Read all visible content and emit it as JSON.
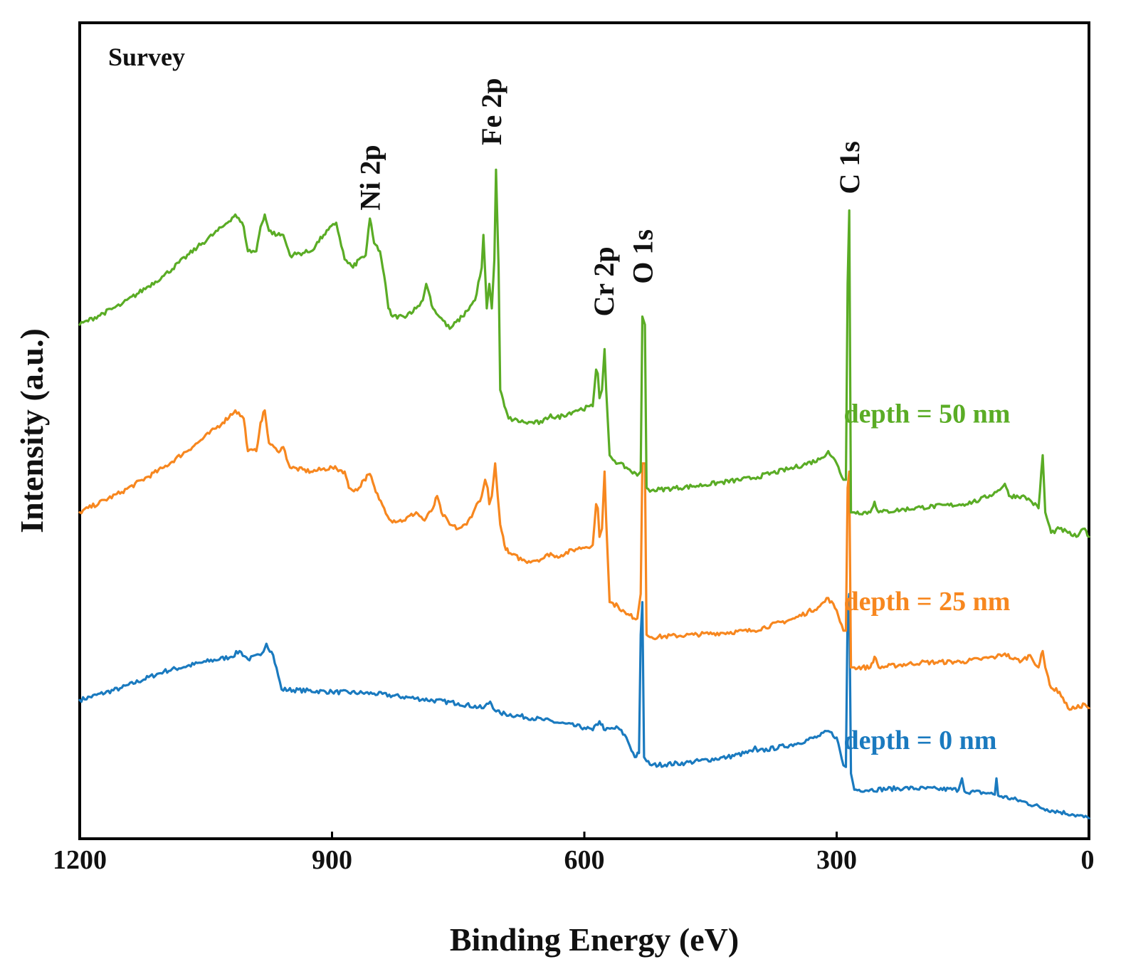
{
  "chart_data": {
    "type": "line",
    "title": "",
    "panel_label": "Survey",
    "xlabel": "Binding Energy (eV)",
    "ylabel": "Intensity (a.u.)",
    "xlim": [
      1200,
      0
    ],
    "ylim": [
      0,
      100
    ],
    "x_reversed": true,
    "xticks": [
      1200,
      900,
      600,
      300,
      0
    ],
    "yticks_shown": false,
    "grid": false,
    "peak_labels": [
      {
        "text": "Ni 2p",
        "x": 855,
        "y": 77
      },
      {
        "text": "Fe 2p",
        "x": 711,
        "y": 85
      },
      {
        "text": "Cr 2p",
        "x": 577,
        "y": 64
      },
      {
        "text": "O 1s",
        "x": 531,
        "y": 68
      },
      {
        "text": "C 1s",
        "x": 285,
        "y": 79
      }
    ],
    "series": [
      {
        "name": "depth = 0 nm",
        "color": "#1a7abf",
        "label_anchor": {
          "x": 300,
          "y": 11
        },
        "points": [
          [
            1200,
            17
          ],
          [
            1150,
            18.5
          ],
          [
            1100,
            20.5
          ],
          [
            1050,
            21.7
          ],
          [
            1020,
            22.3
          ],
          [
            1010,
            23
          ],
          [
            1000,
            22
          ],
          [
            985,
            22.5
          ],
          [
            978,
            23.9
          ],
          [
            970,
            22.5
          ],
          [
            960,
            18.3
          ],
          [
            900,
            18
          ],
          [
            850,
            17.8
          ],
          [
            800,
            17.2
          ],
          [
            750,
            16.6
          ],
          [
            720,
            16
          ],
          [
            712,
            16.8
          ],
          [
            705,
            15.6
          ],
          [
            700,
            15.4
          ],
          [
            650,
            14.6
          ],
          [
            600,
            13.6
          ],
          [
            590,
            13.3
          ],
          [
            582,
            14.4
          ],
          [
            575,
            13.3
          ],
          [
            560,
            13.6
          ],
          [
            550,
            12.4
          ],
          [
            540,
            10
          ],
          [
            535,
            10.5
          ],
          [
            533,
            25
          ],
          [
            531,
            29
          ],
          [
            529,
            10
          ],
          [
            526,
            9.5
          ],
          [
            520,
            9
          ],
          [
            480,
            9.3
          ],
          [
            430,
            10
          ],
          [
            400,
            10.7
          ],
          [
            397,
            11.3
          ],
          [
            394,
            10.7
          ],
          [
            350,
            11.6
          ],
          [
            320,
            12.6
          ],
          [
            310,
            13.2
          ],
          [
            300,
            12.4
          ],
          [
            292,
            9
          ],
          [
            289,
            8.8
          ],
          [
            287,
            28
          ],
          [
            285,
            30
          ],
          [
            283,
            8
          ],
          [
            279,
            6
          ],
          [
            260,
            6
          ],
          [
            220,
            6.2
          ],
          [
            180,
            6.1
          ],
          [
            155,
            6
          ],
          [
            151,
            7.4
          ],
          [
            148,
            5.8
          ],
          [
            120,
            5.6
          ],
          [
            112,
            5.4
          ],
          [
            110,
            7.4
          ],
          [
            108,
            5.3
          ],
          [
            80,
            4.6
          ],
          [
            50,
            3.6
          ],
          [
            20,
            3
          ],
          [
            0,
            2.5
          ]
        ]
      },
      {
        "name": "depth = 25 nm",
        "color": "#f7871f",
        "label_anchor": {
          "x": 300,
          "y": 28
        },
        "points": [
          [
            1200,
            40
          ],
          [
            1150,
            42.5
          ],
          [
            1100,
            45.5
          ],
          [
            1060,
            48.5
          ],
          [
            1030,
            51
          ],
          [
            1015,
            52.5
          ],
          [
            1005,
            51.5
          ],
          [
            1000,
            47.5
          ],
          [
            990,
            47.5
          ],
          [
            985,
            51
          ],
          [
            980,
            52.5
          ],
          [
            975,
            48.5
          ],
          [
            965,
            47.5
          ],
          [
            958,
            48
          ],
          [
            950,
            45.5
          ],
          [
            925,
            45
          ],
          [
            900,
            45.5
          ],
          [
            885,
            45
          ],
          [
            880,
            43
          ],
          [
            870,
            42.7
          ],
          [
            862,
            44
          ],
          [
            855,
            44.7
          ],
          [
            848,
            42.5
          ],
          [
            838,
            40.5
          ],
          [
            830,
            39
          ],
          [
            815,
            39
          ],
          [
            800,
            40
          ],
          [
            790,
            39
          ],
          [
            780,
            40.5
          ],
          [
            775,
            42
          ],
          [
            770,
            40
          ],
          [
            760,
            38.5
          ],
          [
            750,
            38
          ],
          [
            740,
            38.5
          ],
          [
            730,
            40.5
          ],
          [
            722,
            42
          ],
          [
            718,
            44
          ],
          [
            715,
            43
          ],
          [
            713,
            41
          ],
          [
            710,
            42
          ],
          [
            706,
            46
          ],
          [
            703,
            42
          ],
          [
            700,
            38.5
          ],
          [
            695,
            36
          ],
          [
            690,
            35
          ],
          [
            670,
            34
          ],
          [
            650,
            34.3
          ],
          [
            640,
            35
          ],
          [
            635,
            34.5
          ],
          [
            610,
            35.5
          ],
          [
            590,
            36
          ],
          [
            586,
            41
          ],
          [
            584,
            40.5
          ],
          [
            582,
            37
          ],
          [
            579,
            38
          ],
          [
            576,
            45
          ],
          [
            574,
            39
          ],
          [
            570,
            29
          ],
          [
            560,
            28.5
          ],
          [
            550,
            27.5
          ],
          [
            537,
            27
          ],
          [
            533,
            30
          ],
          [
            531,
            46
          ],
          [
            528,
            46
          ],
          [
            526,
            25
          ],
          [
            520,
            24.7
          ],
          [
            470,
            25
          ],
          [
            400,
            25.5
          ],
          [
            350,
            27
          ],
          [
            320,
            28.5
          ],
          [
            310,
            29.5
          ],
          [
            300,
            28
          ],
          [
            292,
            25.5
          ],
          [
            289,
            25.5
          ],
          [
            287,
            43
          ],
          [
            285,
            45
          ],
          [
            283,
            21
          ],
          [
            279,
            21
          ],
          [
            260,
            21
          ],
          [
            255,
            22.3
          ],
          [
            250,
            21
          ],
          [
            200,
            21.6
          ],
          [
            150,
            21.7
          ],
          [
            130,
            22
          ],
          [
            110,
            22.3
          ],
          [
            100,
            22.7
          ],
          [
            90,
            22
          ],
          [
            80,
            21.8
          ],
          [
            70,
            22.5
          ],
          [
            60,
            21
          ],
          [
            55,
            23
          ],
          [
            52,
            21
          ],
          [
            45,
            18.5
          ],
          [
            35,
            18
          ],
          [
            25,
            16
          ],
          [
            15,
            16
          ],
          [
            5,
            16.5
          ],
          [
            0,
            16
          ]
        ]
      },
      {
        "name": "depth = 50 nm",
        "color": "#5aac25",
        "label_anchor": {
          "x": 300,
          "y": 51
        },
        "points": [
          [
            1200,
            63
          ],
          [
            1150,
            65.5
          ],
          [
            1100,
            69
          ],
          [
            1060,
            72.5
          ],
          [
            1030,
            75
          ],
          [
            1015,
            76.5
          ],
          [
            1005,
            75
          ],
          [
            1000,
            72
          ],
          [
            990,
            72
          ],
          [
            985,
            75
          ],
          [
            980,
            76.5
          ],
          [
            975,
            74.5
          ],
          [
            965,
            74
          ],
          [
            958,
            74
          ],
          [
            950,
            71.5
          ],
          [
            925,
            72
          ],
          [
            910,
            74
          ],
          [
            895,
            75.5
          ],
          [
            885,
            71
          ],
          [
            875,
            70
          ],
          [
            868,
            71
          ],
          [
            860,
            71.5
          ],
          [
            855,
            76
          ],
          [
            850,
            73
          ],
          [
            843,
            72
          ],
          [
            838,
            69
          ],
          [
            833,
            65
          ],
          [
            828,
            64
          ],
          [
            815,
            64
          ],
          [
            800,
            65
          ],
          [
            792,
            66
          ],
          [
            788,
            68
          ],
          [
            785,
            67
          ],
          [
            780,
            65
          ],
          [
            760,
            62.5
          ],
          [
            745,
            64
          ],
          [
            730,
            66
          ],
          [
            722,
            70
          ],
          [
            720,
            74
          ],
          [
            716,
            65
          ],
          [
            713,
            68
          ],
          [
            710,
            65
          ],
          [
            707,
            71
          ],
          [
            705,
            82
          ],
          [
            702,
            70
          ],
          [
            700,
            55
          ],
          [
            695,
            53
          ],
          [
            690,
            51.5
          ],
          [
            670,
            51
          ],
          [
            650,
            51
          ],
          [
            640,
            52
          ],
          [
            635,
            51.5
          ],
          [
            610,
            52.5
          ],
          [
            590,
            53
          ],
          [
            586,
            57.5
          ],
          [
            584,
            57
          ],
          [
            582,
            54
          ],
          [
            579,
            55
          ],
          [
            576,
            60
          ],
          [
            574,
            55
          ],
          [
            570,
            47
          ],
          [
            560,
            46
          ],
          [
            550,
            45.5
          ],
          [
            537,
            44.5
          ],
          [
            533,
            45
          ],
          [
            531,
            64
          ],
          [
            528,
            63
          ],
          [
            526,
            43
          ],
          [
            520,
            42.7
          ],
          [
            470,
            43.2
          ],
          [
            400,
            44.2
          ],
          [
            350,
            45.5
          ],
          [
            320,
            46.5
          ],
          [
            310,
            47.5
          ],
          [
            300,
            46
          ],
          [
            292,
            44
          ],
          [
            289,
            44
          ],
          [
            287,
            68
          ],
          [
            285,
            77
          ],
          [
            283,
            40
          ],
          [
            279,
            40
          ],
          [
            260,
            40
          ],
          [
            255,
            41.3
          ],
          [
            250,
            40
          ],
          [
            200,
            40.6
          ],
          [
            150,
            41
          ],
          [
            130,
            41.5
          ],
          [
            110,
            42.5
          ],
          [
            100,
            43.5
          ],
          [
            95,
            42
          ],
          [
            80,
            42
          ],
          [
            70,
            41.5
          ],
          [
            60,
            40.5
          ],
          [
            55,
            47
          ],
          [
            52,
            40
          ],
          [
            45,
            37.5
          ],
          [
            35,
            38
          ],
          [
            25,
            37.5
          ],
          [
            15,
            37
          ],
          [
            5,
            38
          ],
          [
            0,
            37
          ]
        ]
      }
    ]
  }
}
